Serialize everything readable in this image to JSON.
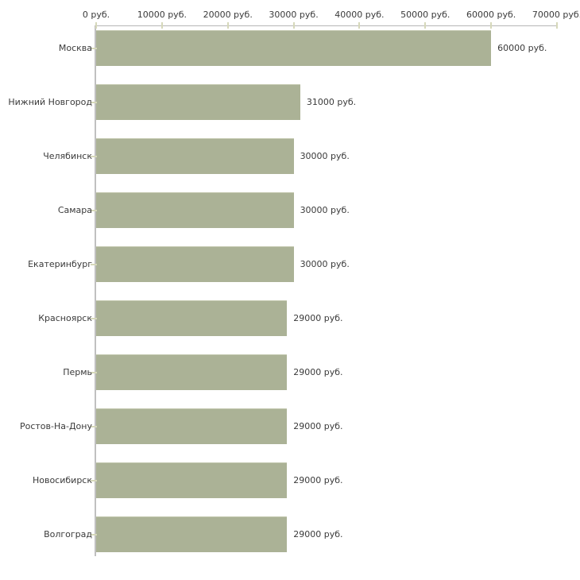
{
  "chart_data": {
    "type": "bar",
    "orientation": "horizontal",
    "title": "",
    "categories": [
      "Москва",
      "Нижний Новгород",
      "Челябинск",
      "Самара",
      "Екатеринбург",
      "Красноярск",
      "Пермь",
      "Ростов-На-Дону",
      "Новосибирск",
      "Волгоград"
    ],
    "values": [
      60000,
      31000,
      30000,
      30000,
      30000,
      29000,
      29000,
      29000,
      29000,
      29000
    ],
    "value_labels": [
      "60000 руб.",
      "31000 руб.",
      "30000 руб.",
      "30000 руб.",
      "30000 руб.",
      "29000 руб.",
      "29000 руб.",
      "29000 руб.",
      "29000 руб.",
      "29000 руб."
    ],
    "x_axis": {
      "position": "top",
      "ticks": [
        0,
        10000,
        20000,
        30000,
        40000,
        50000,
        60000,
        70000
      ],
      "tick_labels": [
        "0 руб.",
        "10000 руб.",
        "20000 руб.",
        "30000 руб.",
        "40000 руб.",
        "50000 руб.",
        "60000 руб.",
        "70000 руб."
      ],
      "range": [
        0,
        70000
      ]
    },
    "unit": "руб.",
    "grid": false,
    "legend": false,
    "colors": {
      "bar": "#abb296",
      "bar_edge": "#c2c7ad",
      "axis_line": "#b6b6b6",
      "y_axis_line": "#c0c0c0",
      "tick_mark": "#d6d8ba",
      "text": "#3a3a3a",
      "background": "#ffffff"
    }
  }
}
